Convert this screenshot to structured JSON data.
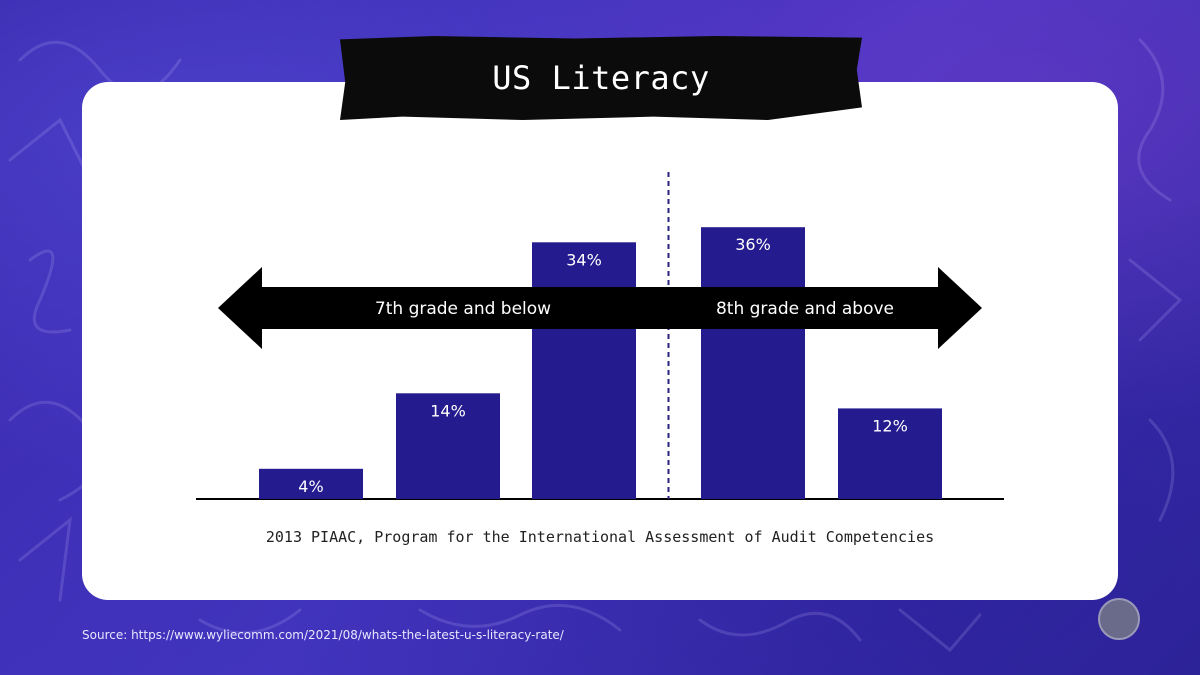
{
  "title": "US Literacy",
  "caption": "2013 PIAAC, Program for the International Assessment of Audit Competencies",
  "source": "Source: https://www.wyliecomm.com/2021/08/whats-the-latest-u-s-literacy-rate/",
  "colors": {
    "background": "#3a2fb0",
    "bar": "#241b8f",
    "arrow": "#000000",
    "card": "#ffffff"
  },
  "chart_data": {
    "type": "bar",
    "categories": [
      "",
      "",
      "",
      "",
      ""
    ],
    "values": [
      4,
      14,
      34,
      36,
      12
    ],
    "value_labels": [
      "4%",
      "14%",
      "34%",
      "36%",
      "12%"
    ],
    "ylim": [
      0,
      40
    ],
    "grid": false,
    "annotations": {
      "left_arrow": "7th grade and below",
      "right_arrow": "8th grade and above",
      "divider": "dashed vertical line between the 34% and 36% bars"
    }
  }
}
